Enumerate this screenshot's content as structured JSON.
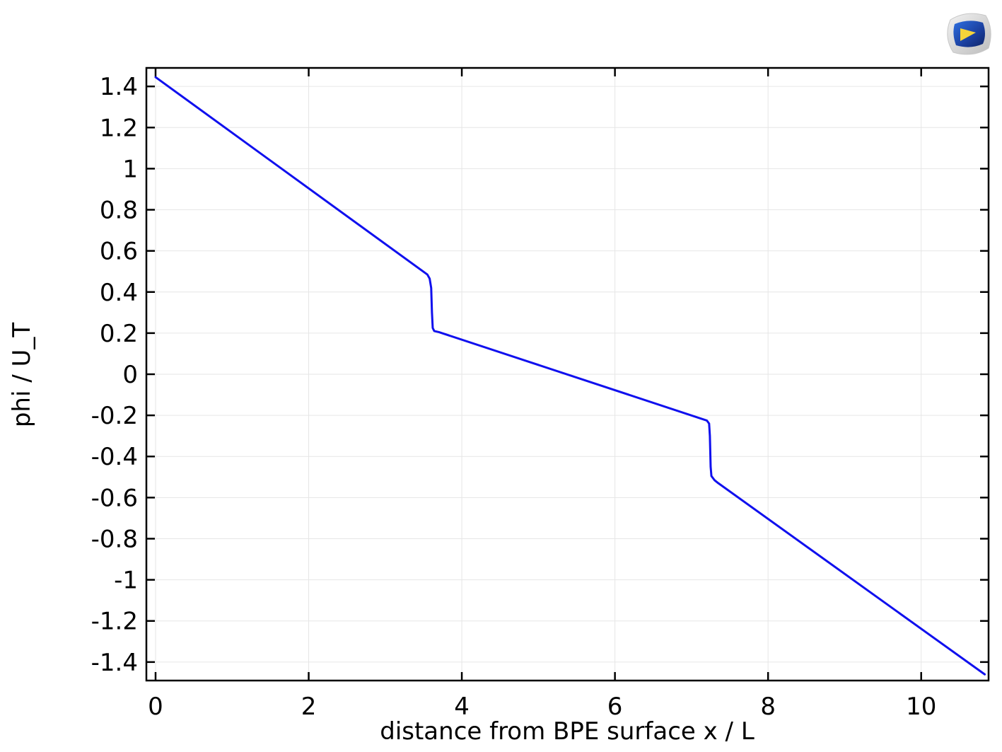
{
  "chart_data": {
    "type": "line",
    "title": "",
    "xlabel": "distance from BPE surface x / L",
    "ylabel": "phi / U_T",
    "xlim": [
      -0.12,
      10.88
    ],
    "ylim": [
      -1.49,
      1.49
    ],
    "grid": true,
    "xticks": [
      0,
      2,
      4,
      6,
      8,
      10
    ],
    "xtick_labels": [
      "0",
      "2",
      "4",
      "6",
      "8",
      "10"
    ],
    "yticks": [
      1.4,
      1.2,
      1,
      0.8,
      0.6,
      0.4,
      0.2,
      0,
      -0.2,
      -0.4,
      -0.6,
      -0.8,
      -1,
      -1.2,
      -1.4
    ],
    "ytick_labels": [
      "1.4",
      "1.2",
      "1",
      "0.8",
      "0.6",
      "0.4",
      "0.2",
      "0",
      "-0.2",
      "-0.4",
      "-0.6",
      "-0.8",
      "-1",
      "-1.2",
      "-1.4"
    ],
    "series": [
      {
        "color": "#1010ee",
        "x": [
          0.0,
          3.55,
          3.58,
          3.6,
          3.61,
          3.62,
          3.64,
          3.7,
          7.2,
          7.23,
          7.24,
          7.25,
          7.26,
          7.3,
          7.35,
          10.83
        ],
        "y": [
          1.445,
          0.485,
          0.465,
          0.42,
          0.3,
          0.225,
          0.21,
          0.205,
          -0.225,
          -0.24,
          -0.3,
          -0.45,
          -0.495,
          -0.515,
          -0.53,
          -1.46
        ]
      }
    ]
  },
  "logo": {
    "name": "comsol-logo-icon"
  }
}
